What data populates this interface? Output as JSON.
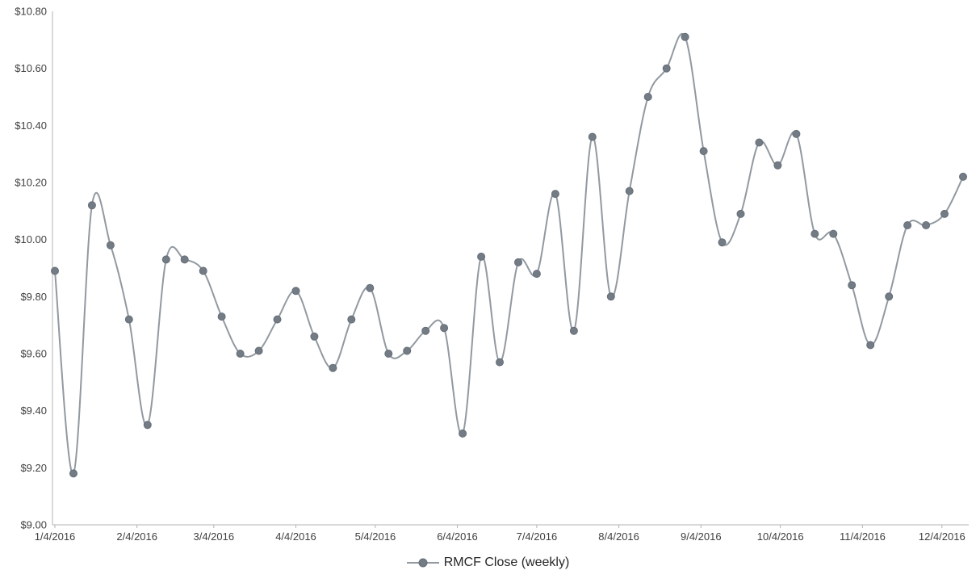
{
  "chart_data": {
    "type": "line",
    "title": "",
    "smoothed": true,
    "grid": false,
    "legend_position": "bottom",
    "ylim": [
      9.0,
      10.8
    ],
    "y_ticks": [
      9.0,
      9.2,
      9.4,
      9.6,
      9.8,
      10.0,
      10.2,
      10.4,
      10.6,
      10.8
    ],
    "y_tick_labels": [
      "$9.00",
      "$9.20",
      "$9.40",
      "$9.60",
      "$9.80",
      "$10.00",
      "$10.20",
      "$10.40",
      "$10.60",
      "$10.80"
    ],
    "x_tick_labels": [
      "1/4/2016",
      "2/4/2016",
      "3/4/2016",
      "4/4/2016",
      "5/4/2016",
      "6/4/2016",
      "7/4/2016",
      "8/4/2016",
      "9/4/2016",
      "10/4/2016",
      "11/4/2016",
      "12/4/2016"
    ],
    "colors": {
      "line": "#9199a1",
      "marker": "#737b85",
      "marker_stroke": "#666e78",
      "axis": "#b3b3b3",
      "text": "#404040",
      "legend_text": "#262626"
    },
    "series": [
      {
        "name": "RMCF Close (weekly)",
        "dates": [
          "1/4/2016",
          "1/11/2016",
          "1/18/2016",
          "1/25/2016",
          "2/1/2016",
          "2/8/2016",
          "2/15/2016",
          "2/22/2016",
          "2/29/2016",
          "3/7/2016",
          "3/14/2016",
          "3/21/2016",
          "3/28/2016",
          "4/4/2016",
          "4/11/2016",
          "4/18/2016",
          "4/25/2016",
          "5/2/2016",
          "5/9/2016",
          "5/16/2016",
          "5/23/2016",
          "5/30/2016",
          "6/6/2016",
          "6/13/2016",
          "6/20/2016",
          "6/27/2016",
          "7/4/2016",
          "7/11/2016",
          "7/18/2016",
          "7/25/2016",
          "8/1/2016",
          "8/8/2016",
          "8/15/2016",
          "8/22/2016",
          "8/29/2016",
          "9/5/2016",
          "9/12/2016",
          "9/19/2016",
          "9/26/2016",
          "10/3/2016",
          "10/10/2016",
          "10/17/2016",
          "10/24/2016",
          "10/31/2016",
          "11/7/2016",
          "11/14/2016",
          "11/21/2016",
          "11/28/2016",
          "12/5/2016",
          "12/12/2016"
        ],
        "values": [
          9.89,
          9.18,
          10.12,
          9.98,
          9.72,
          9.35,
          9.93,
          9.93,
          9.89,
          9.73,
          9.6,
          9.61,
          9.72,
          9.82,
          9.66,
          9.55,
          9.72,
          9.83,
          9.6,
          9.61,
          9.68,
          9.69,
          9.32,
          9.94,
          9.57,
          9.92,
          9.88,
          10.16,
          9.68,
          10.36,
          9.8,
          10.17,
          10.5,
          10.6,
          10.71,
          10.31,
          9.99,
          10.09,
          10.34,
          10.26,
          10.37,
          10.02,
          10.02,
          9.84,
          9.63,
          9.8,
          10.05,
          10.05,
          10.09,
          10.22
        ]
      }
    ]
  }
}
